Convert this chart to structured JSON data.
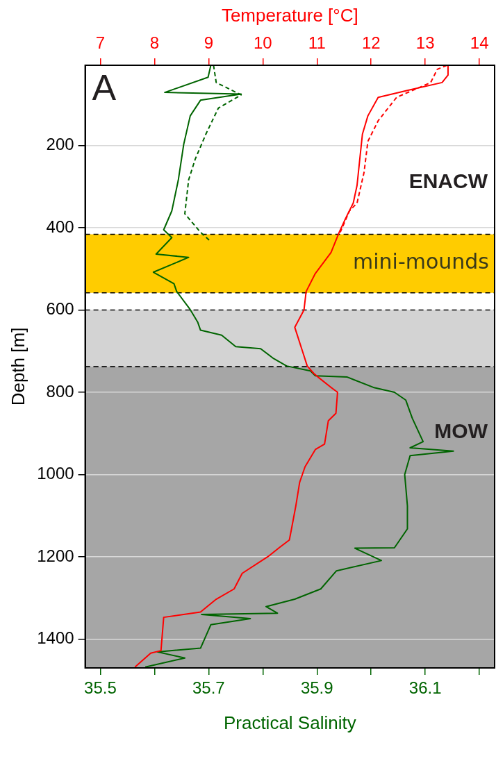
{
  "chart_data": {
    "type": "line",
    "xlabel": "Practical Salinity",
    "x2label": "Temperature [°C]",
    "ylabel": "Depth [m]",
    "xlim": [
      35.472,
      36.228
    ],
    "xticks": [
      35.5,
      {
        "value": 35.6,
        "label": null
      },
      35.7,
      {
        "value": 35.8,
        "label": null
      },
      35.9,
      {
        "value": 36.0,
        "label": null
      },
      36.1,
      {
        "value": 36.2,
        "label": null
      }
    ],
    "x2lim": [
      6.72,
      14.28
    ],
    "x2ticks": [
      7,
      8,
      9,
      10,
      11,
      12,
      13,
      14
    ],
    "ylim": [
      1470,
      5
    ],
    "yticks": [
      200,
      400,
      600,
      800,
      1000,
      1200,
      1400
    ],
    "grid": "y",
    "legend": false,
    "marker": "none",
    "bands": [
      {
        "axis": "y",
        "from": 416,
        "to": 558,
        "label": "mini-mounds",
        "color": "#ffcc00"
      },
      {
        "axis": "y",
        "from": 600,
        "to": 738,
        "label": null,
        "color": "#d3d3d3"
      },
      {
        "axis": "y",
        "from": 738,
        "to": 1470,
        "label": null,
        "color": "#a6a6a6"
      }
    ],
    "annotations": [
      "A",
      "ENACW",
      "MOW"
    ],
    "series": [
      {
        "color": "#ff0000",
        "axis": "x2",
        "line_style": "solid",
        "x": [
          13.42,
          13.42,
          13.31,
          12.71,
          12.13,
          11.94,
          11.84,
          11.79,
          11.74,
          11.67,
          11.53,
          11.41,
          11.26,
          10.97,
          10.8,
          10.76,
          10.59,
          10.73,
          10.82,
          10.94,
          11.02,
          11.26,
          11.38,
          11.35,
          11.21,
          11.14,
          10.97,
          10.78,
          10.68,
          10.61,
          10.53,
          10.49,
          10.3,
          10.1,
          9.62,
          9.47,
          9.14,
          8.85,
          8.17,
          8.12,
          7.93,
          7.64
        ],
        "values": [
          5,
          29,
          47,
          65,
          83,
          128,
          172,
          234,
          297,
          340,
          377,
          411,
          460,
          511,
          555,
          600,
          642,
          699,
          736,
          754,
          763,
          788,
          800,
          851,
          869,
          926,
          939,
          981,
          1019,
          1076,
          1132,
          1159,
          1178,
          1199,
          1240,
          1278,
          1303,
          1334,
          1347,
          1428,
          1434,
          1468
        ]
      },
      {
        "color": "#ff0000",
        "axis": "x2",
        "line_style": "dashed",
        "x": [
          13.4,
          13.22,
          13.1,
          12.47,
          12.13,
          11.94,
          11.87,
          11.74,
          11.6,
          11.43
        ],
        "values": [
          5,
          15,
          47,
          83,
          140,
          190,
          265,
          340,
          359,
          411
        ]
      },
      {
        "color": "#006400",
        "line_style": "solid",
        "x": [
          35.704,
          35.699,
          35.619,
          35.76,
          35.685,
          35.666,
          35.654,
          35.644,
          35.632,
          35.617,
          35.632,
          35.603,
          35.663,
          35.598,
          35.636,
          35.641,
          35.666,
          35.68,
          35.685,
          35.724,
          35.75,
          35.796,
          35.82,
          35.844,
          35.888,
          35.897,
          35.956,
          36.004,
          36.043,
          36.064,
          36.076,
          36.096,
          36.072,
          36.152,
          36.072,
          36.062,
          36.067,
          36.067,
          36.043,
          35.97,
          36.019,
          35.936,
          35.907,
          35.859,
          35.806,
          35.827,
          35.687,
          35.777,
          35.704,
          35.685,
          35.605,
          35.656,
          35.583
        ],
        "values": [
          5,
          34,
          71,
          75,
          90,
          128,
          197,
          284,
          359,
          405,
          424,
          464,
          472,
          508,
          536,
          555,
          599,
          630,
          649,
          661,
          689,
          694,
          718,
          736,
          748,
          760,
          763,
          788,
          800,
          819,
          863,
          920,
          935,
          943,
          954,
          1000,
          1076,
          1132,
          1178,
          1179,
          1209,
          1234,
          1278,
          1303,
          1321,
          1337,
          1340,
          1350,
          1365,
          1422,
          1431,
          1446,
          1468
        ]
      },
      {
        "color": "#006400",
        "line_style": "dashed",
        "x": [
          35.709,
          35.714,
          35.76,
          35.718,
          35.695,
          35.675,
          35.663,
          35.656,
          35.685,
          35.701
        ],
        "values": [
          5,
          47,
          77,
          109,
          172,
          234,
          284,
          366,
          411,
          430
        ]
      }
    ]
  }
}
